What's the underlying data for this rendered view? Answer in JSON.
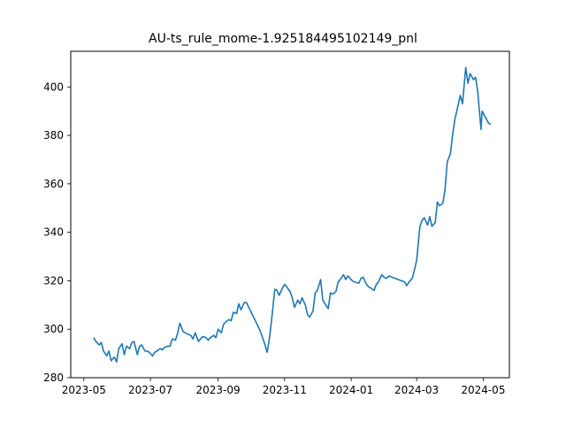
{
  "chart_data": {
    "type": "line",
    "title": "AU-ts_rule_mome-1.925184495102149_pnl",
    "xlabel": "",
    "ylabel": "",
    "x_ticks": [
      "2023-05",
      "2023-07",
      "2023-09",
      "2023-11",
      "2024-01",
      "2024-03",
      "2024-05"
    ],
    "y_ticks": [
      280,
      300,
      320,
      340,
      360,
      380,
      400
    ],
    "xlim": [
      "2023-04-19",
      "2024-05-25"
    ],
    "ylim": [
      280,
      414.7
    ],
    "grid": false,
    "legend": "none",
    "line_color": "#1f77b4",
    "series": [
      {
        "x": [
          "2023-05-10",
          "2023-05-12",
          "2023-05-15",
          "2023-05-17",
          "2023-05-19",
          "2023-05-22",
          "2023-05-24",
          "2023-05-26",
          "2023-05-29",
          "2023-05-31",
          "2023-06-02",
          "2023-06-05",
          "2023-06-07",
          "2023-06-09",
          "2023-06-12",
          "2023-06-14",
          "2023-06-16",
          "2023-06-19",
          "2023-06-21",
          "2023-06-23",
          "2023-06-26",
          "2023-06-28",
          "2023-06-30",
          "2023-07-03",
          "2023-07-05",
          "2023-07-07",
          "2023-07-10",
          "2023-07-12",
          "2023-07-14",
          "2023-07-17",
          "2023-07-19",
          "2023-07-21",
          "2023-07-24",
          "2023-07-26",
          "2023-07-28",
          "2023-07-31",
          "2023-08-02",
          "2023-08-04",
          "2023-08-07",
          "2023-08-09",
          "2023-08-11",
          "2023-08-14",
          "2023-08-16",
          "2023-08-18",
          "2023-08-21",
          "2023-08-23",
          "2023-08-25",
          "2023-08-28",
          "2023-08-30",
          "2023-09-01",
          "2023-09-04",
          "2023-09-06",
          "2023-09-08",
          "2023-09-11",
          "2023-09-13",
          "2023-09-15",
          "2023-09-18",
          "2023-09-20",
          "2023-09-22",
          "2023-09-25",
          "2023-09-27",
          "2023-10-09",
          "2023-10-11",
          "2023-10-13",
          "2023-10-16",
          "2023-10-18",
          "2023-10-20",
          "2023-10-23",
          "2023-10-25",
          "2023-10-27",
          "2023-10-30",
          "2023-11-01",
          "2023-11-03",
          "2023-11-06",
          "2023-11-08",
          "2023-11-10",
          "2023-11-13",
          "2023-11-15",
          "2023-11-17",
          "2023-11-20",
          "2023-11-22",
          "2023-11-24",
          "2023-11-27",
          "2023-11-29",
          "2023-12-01",
          "2023-12-04",
          "2023-12-06",
          "2023-12-08",
          "2023-12-11",
          "2023-12-13",
          "2023-12-15",
          "2023-12-18",
          "2023-12-20",
          "2023-12-22",
          "2023-12-25",
          "2023-12-27",
          "2023-12-29",
          "2024-01-02",
          "2024-01-04",
          "2024-01-08",
          "2024-01-10",
          "2024-01-12",
          "2024-01-15",
          "2024-01-17",
          "2024-01-19",
          "2024-01-22",
          "2024-01-24",
          "2024-01-26",
          "2024-01-29",
          "2024-01-31",
          "2024-02-02",
          "2024-02-05",
          "2024-02-07",
          "2024-02-19",
          "2024-02-21",
          "2024-02-23",
          "2024-02-26",
          "2024-02-28",
          "2024-03-01",
          "2024-03-04",
          "2024-03-06",
          "2024-03-08",
          "2024-03-11",
          "2024-03-13",
          "2024-03-15",
          "2024-03-18",
          "2024-03-20",
          "2024-03-22",
          "2024-03-25",
          "2024-03-27",
          "2024-03-29",
          "2024-04-01",
          "2024-04-03",
          "2024-04-05",
          "2024-04-08",
          "2024-04-10",
          "2024-04-12",
          "2024-04-15",
          "2024-04-17",
          "2024-04-19",
          "2024-04-22",
          "2024-04-24",
          "2024-04-26",
          "2024-04-29",
          "2024-04-30",
          "2024-05-06",
          "2024-05-08"
        ],
        "values": [
          296.5,
          295.0,
          293.5,
          294.5,
          291.0,
          289.0,
          291.0,
          287.0,
          288.5,
          286.5,
          292.0,
          294.0,
          289.5,
          293.0,
          292.0,
          294.5,
          295.0,
          289.5,
          293.0,
          293.5,
          291.0,
          291.0,
          290.5,
          289.0,
          290.5,
          291.0,
          292.0,
          291.5,
          292.5,
          293.0,
          293.0,
          296.0,
          295.5,
          298.5,
          302.5,
          299.0,
          298.5,
          298.0,
          297.5,
          296.0,
          298.5,
          295.0,
          296.0,
          297.0,
          296.5,
          295.5,
          296.5,
          297.5,
          296.5,
          300.0,
          298.5,
          302.0,
          303.0,
          304.0,
          303.5,
          307.0,
          306.5,
          310.5,
          308.0,
          311.0,
          311.0,
          300.0,
          297.5,
          295.0,
          290.5,
          296.0,
          303.5,
          316.5,
          316.0,
          314.0,
          317.0,
          318.5,
          317.5,
          315.5,
          313.0,
          309.0,
          312.0,
          310.5,
          313.0,
          310.0,
          306.0,
          305.0,
          307.5,
          315.0,
          316.0,
          320.5,
          312.0,
          310.5,
          308.5,
          315.0,
          314.5,
          315.5,
          319.5,
          320.5,
          322.5,
          320.5,
          322.0,
          320.0,
          319.5,
          319.0,
          321.0,
          321.5,
          318.5,
          317.5,
          317.0,
          316.0,
          318.5,
          319.5,
          322.5,
          321.5,
          321.0,
          322.0,
          321.5,
          319.5,
          318.0,
          319.5,
          321.0,
          324.5,
          328.5,
          342.5,
          345.0,
          346.0,
          343.0,
          346.5,
          342.5,
          344.0,
          352.5,
          351.0,
          352.0,
          357.5,
          369.0,
          372.5,
          380.5,
          386.5,
          392.5,
          396.5,
          393.0,
          408.0,
          401.5,
          405.5,
          403.0,
          404.0,
          398.0,
          382.5,
          390.0,
          385.0,
          384.5
        ]
      }
    ]
  }
}
